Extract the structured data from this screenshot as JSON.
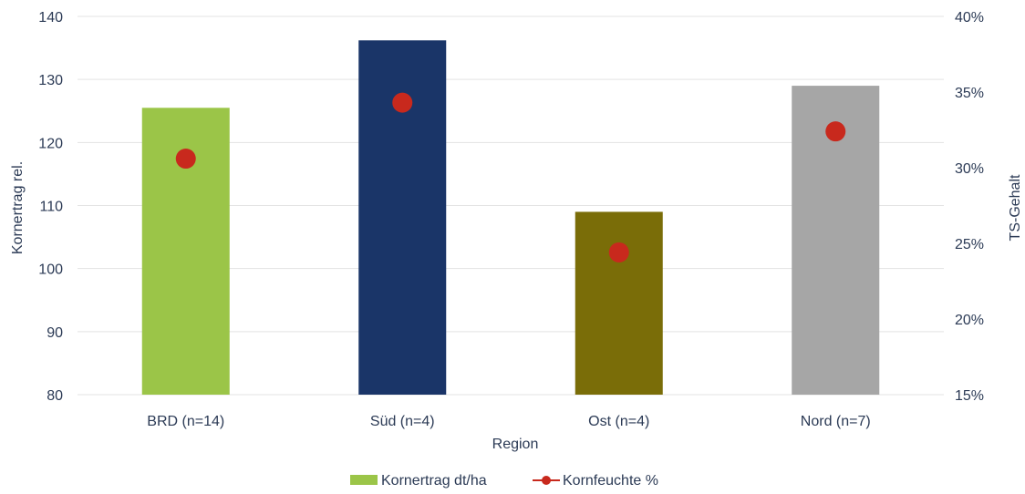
{
  "chart_data": {
    "type": "bar",
    "xlabel": "Region",
    "ylabel": "Kornertrag rel.",
    "y2label": "TS-Gehalt",
    "categories": [
      "BRD (n=14)",
      "Süd (n=4)",
      "Ost (n=4)",
      "Nord (n=7)"
    ],
    "ylim": [
      80,
      140
    ],
    "yticks": [
      "80",
      "90",
      "100",
      "110",
      "120",
      "130",
      "140"
    ],
    "y2lim": [
      15,
      40
    ],
    "y2ticks": [
      "15%",
      "20%",
      "25%",
      "30%",
      "35%",
      "40%"
    ],
    "grid": true,
    "legend_position": "bottom",
    "series": [
      {
        "name": "Kornertrag dt/ha",
        "kind": "bar",
        "axis": "left",
        "values": [
          125.5,
          136.2,
          109,
          129
        ],
        "colors": [
          "#9bc548",
          "#1a3568",
          "#7a6d08",
          "#a6a6a6"
        ]
      },
      {
        "name": "Kornfeuchte %",
        "kind": "marker",
        "axis": "right",
        "values": [
          30.6,
          34.3,
          24.4,
          32.4
        ],
        "color": "#c8291d"
      }
    ]
  }
}
